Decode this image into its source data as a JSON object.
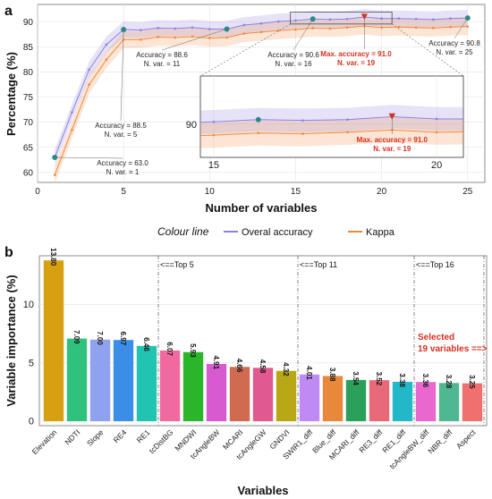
{
  "chart_data": [
    {
      "type": "line",
      "panel": "a",
      "xlabel": "Number of variables",
      "ylabel": "Percentage (%)",
      "xlim": [
        0,
        26
      ],
      "ylim": [
        58,
        93.5
      ],
      "xticks": [
        0,
        5,
        10,
        15,
        20,
        25
      ],
      "yticks": [
        60,
        65,
        70,
        75,
        80,
        85,
        90
      ],
      "legend_title": "Colour line",
      "legend_position": "bottom",
      "x": [
        1,
        2,
        3,
        4,
        5,
        6,
        7,
        8,
        9,
        10,
        11,
        12,
        13,
        14,
        15,
        16,
        17,
        18,
        19,
        20,
        21,
        22,
        23,
        24,
        25
      ],
      "series": [
        {
          "name": "Overal accuracy",
          "color": "#8e7fe0",
          "values": [
            63.0,
            72.0,
            80.5,
            85.5,
            88.5,
            88.4,
            88.8,
            88.7,
            88.9,
            88.6,
            88.6,
            89.4,
            89.7,
            90.1,
            90.3,
            90.6,
            90.5,
            90.6,
            91.0,
            90.7,
            90.7,
            90.6,
            90.5,
            90.7,
            90.8
          ],
          "band_half_width": 1.6
        },
        {
          "name": "Kappa",
          "color": "#f0883e",
          "values": [
            59.5,
            68.5,
            77.5,
            82.5,
            86.5,
            86.5,
            87.0,
            86.9,
            87.1,
            86.8,
            86.9,
            87.7,
            88.0,
            88.3,
            88.5,
            88.8,
            88.7,
            88.9,
            89.2,
            88.9,
            89.0,
            88.9,
            88.8,
            89.0,
            89.1
          ],
          "band_half_width": 1.7
        }
      ],
      "highlight_points": [
        1,
        5,
        11,
        16,
        25
      ],
      "max_point": 19,
      "annotations": [
        {
          "x": 1,
          "line1": "Accuracy = 63.0",
          "line2": "N. var. = 1"
        },
        {
          "x": 5,
          "line1": "Accuracy = 88.5",
          "line2": "N. var. = 5"
        },
        {
          "x": 11,
          "line1": "Accuracy = 88.6",
          "line2": "N. var. = 11"
        },
        {
          "x": 16,
          "line1": "Accuracy = 90.6",
          "line2": "N. var. = 16"
        },
        {
          "x": 25,
          "line1": "Accuracy = 90.8",
          "line2": "N. var. = 25"
        },
        {
          "x": 19,
          "line1": "Max. accuracy = 91.0",
          "line2": "N. var. = 19",
          "color": "#d7301f"
        }
      ],
      "inset": {
        "xlim": [
          14.7,
          20.6
        ],
        "ylim": [
          85.5,
          96.5
        ],
        "xticks": [
          15,
          20
        ],
        "yticks": [
          90
        ],
        "annotation": {
          "line1": "Max. accuracy = 91.0",
          "line2": "N. var. = 19"
        }
      }
    },
    {
      "type": "bar",
      "panel": "b",
      "xlabel": "Variables",
      "ylabel": "Variable importance (%)",
      "ylim": [
        0,
        14.2
      ],
      "yticks": [
        0,
        5,
        10
      ],
      "categories": [
        "Elevation",
        "NDTI",
        "Slope",
        "RE4",
        "RE1",
        "tcDistBG",
        "MNDWI",
        "tcAngleBW",
        "MCARI",
        "tcAngleGW",
        "GNDVI",
        "SWIR1_diff",
        "Blue_diff",
        "MCARI_diff",
        "RE3_diff",
        "RE1_diff",
        "tcAngleBW_diff",
        "NBR_diff",
        "Aspect"
      ],
      "values": [
        13.8,
        7.09,
        7.0,
        6.97,
        6.46,
        6.07,
        5.93,
        4.91,
        4.66,
        4.58,
        4.32,
        4.01,
        3.88,
        3.54,
        3.52,
        3.38,
        3.36,
        3.28,
        3.25
      ],
      "value_labels": [
        "13.80",
        "7.09",
        "7.00",
        "6.97",
        "6.46",
        "6.07",
        "5.93",
        "4.91",
        "4.66",
        "4.58",
        "4.32",
        "4.01",
        "3.88",
        "3.54",
        "3.52",
        "3.38",
        "3.36",
        "3.28",
        "3.25"
      ],
      "colors": [
        "#d6a010",
        "#2ec27e",
        "#8ea2f0",
        "#3b8ee8",
        "#20c4b0",
        "#f06aa0",
        "#2bb52b",
        "#d85ad0",
        "#d06a50",
        "#e05a90",
        "#b8a815",
        "#c08af5",
        "#e8883a",
        "#2aa05a",
        "#e86a7a",
        "#22b8c8",
        "#e868d0",
        "#50b890",
        "#f07070"
      ],
      "cutoffs": [
        {
          "after_index": 4,
          "label": "<==Top 5"
        },
        {
          "after_index": 10,
          "label": "<==Top 11"
        },
        {
          "after_index": 15,
          "label": "<==Top 16"
        },
        {
          "after_index": 18,
          "label": ""
        }
      ],
      "selection_note": {
        "line1": "Selected",
        "line2": "19 variables ==>",
        "color": "#d7301f"
      }
    }
  ]
}
